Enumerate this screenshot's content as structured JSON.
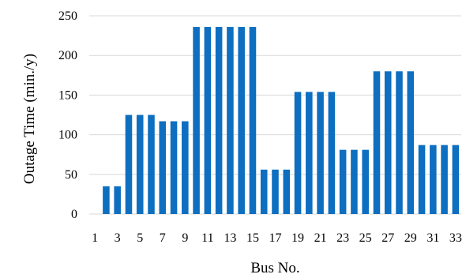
{
  "chart_data": {
    "type": "bar",
    "categories": [
      "1",
      "2",
      "3",
      "4",
      "5",
      "6",
      "7",
      "8",
      "9",
      "10",
      "11",
      "12",
      "13",
      "14",
      "15",
      "16",
      "17",
      "18",
      "19",
      "20",
      "21",
      "22",
      "23",
      "24",
      "25",
      "26",
      "27",
      "28",
      "29",
      "30",
      "31",
      "32",
      "33"
    ],
    "values": [
      0,
      35,
      35,
      125,
      125,
      125,
      117,
      117,
      117,
      236,
      236,
      236,
      236,
      236,
      236,
      56,
      56,
      56,
      154,
      154,
      154,
      154,
      81,
      81,
      81,
      180,
      180,
      180,
      180,
      87,
      87,
      87,
      87
    ],
    "xlabel": "Bus No.",
    "ylabel": "Outage Time (min./y)",
    "ylim": [
      0,
      250
    ],
    "yticks": [
      0,
      50,
      100,
      150,
      200,
      250
    ],
    "xtick_labels": [
      "1",
      "3",
      "5",
      "7",
      "9",
      "11",
      "13",
      "15",
      "17",
      "19",
      "21",
      "23",
      "25",
      "27",
      "29",
      "31",
      "33"
    ],
    "bar_color": "#0e6fc1",
    "grid": true,
    "legend": "none"
  }
}
